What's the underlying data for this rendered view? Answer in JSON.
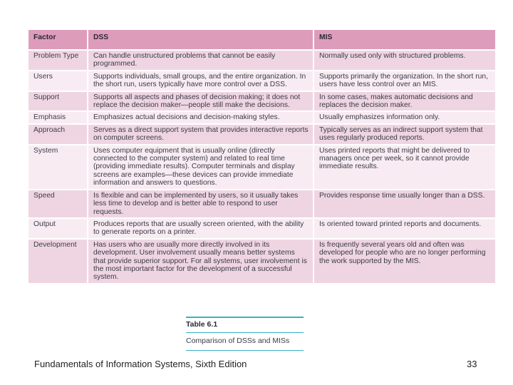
{
  "table": {
    "headers": [
      "Factor",
      "DSS",
      "MIS"
    ],
    "rows": [
      {
        "factor": "Problem Type",
        "dss": "Can handle unstructured problems that cannot be easily programmed.",
        "mis": "Normally used only with structured problems."
      },
      {
        "factor": "Users",
        "dss": "Supports individuals, small groups, and the entire organization. In the short run, users typically have more control over a DSS.",
        "mis": "Supports primarily the organization. In the short run, users have less control over an MIS."
      },
      {
        "factor": "Support",
        "dss": "Supports all aspects and phases of decision making; it does not replace the decision maker—people still make the decisions.",
        "mis": "In some cases, makes automatic decisions and replaces the decision maker."
      },
      {
        "factor": "Emphasis",
        "dss": "Emphasizes actual decisions and decision-making styles.",
        "mis": "Usually emphasizes information only."
      },
      {
        "factor": "Approach",
        "dss": "Serves as a direct support system that provides interactive reports on computer screens.",
        "mis": "Typically serves as an indirect support system that uses regularly produced reports."
      },
      {
        "factor": "System",
        "dss": "Uses computer equipment that is usually online (directly connected to the computer system) and related to real time (providing immediate results). Computer terminals and display screens are examples—these devices can provide immediate information and answers to questions.",
        "mis": "Uses printed reports that might be delivered to managers once per week, so it cannot provide immediate results."
      },
      {
        "factor": "Speed",
        "dss": "Is flexible and can be implemented by users, so it usually takes less time to develop and is better able to respond to user requests.",
        "mis": "Provides response time usually longer than a DSS."
      },
      {
        "factor": "Output",
        "dss": "Produces reports that are usually screen oriented, with the ability to generate reports on a printer.",
        "mis": "Is oriented toward printed reports and documents."
      },
      {
        "factor": "Development",
        "dss": "Has users who are usually more directly involved in its development. User involvement usually means better systems that provide superior support. For all systems, user involvement is the most important factor for the development of a successful system.",
        "mis": "Is frequently several years old and often was developed for people who are no longer performing the work supported by the MIS."
      }
    ]
  },
  "caption": {
    "label": "Table 6.1",
    "title": "Comparison of DSSs and MISs"
  },
  "footer": {
    "book_title": "Fundamentals of Information Systems, Sixth Edition",
    "page_number": "33"
  },
  "colors": {
    "header_bg": "#de9cbb",
    "row_odd_bg": "#efd5e2",
    "row_even_bg": "#f8ecf2",
    "caption_rule": "#3bb0c6"
  }
}
